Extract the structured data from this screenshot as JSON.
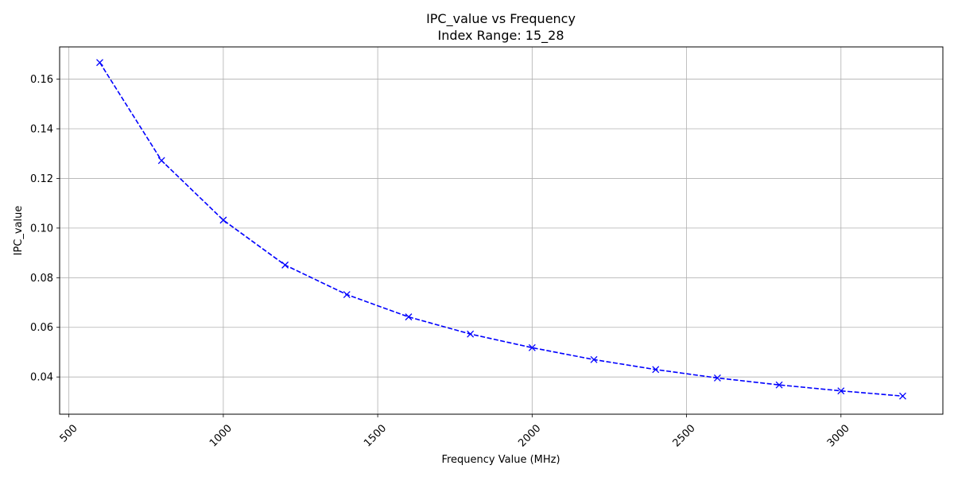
{
  "chart_data": {
    "type": "line",
    "title": "IPC_value vs Frequency",
    "subtitle": "Index Range: 15_28",
    "xlabel": "Frequency Value (MHz)",
    "ylabel": "IPC_value",
    "xlim": [
      470,
      3330
    ],
    "ylim": [
      0.025,
      0.173
    ],
    "xticks": [
      500,
      1000,
      1500,
      2000,
      2500,
      3000
    ],
    "xtick_labels": [
      "500",
      "1000",
      "1500",
      "2000",
      "2500",
      "3000"
    ],
    "yticks": [
      0.04,
      0.06,
      0.08,
      0.1,
      0.12,
      0.14,
      0.16
    ],
    "ytick_labels": [
      "0.04",
      "0.06",
      "0.08",
      "0.10",
      "0.12",
      "0.14",
      "0.16"
    ],
    "grid": true,
    "line_style": "dashed",
    "marker": "x",
    "color": "#0000ff",
    "series": [
      {
        "x": [
          600,
          800,
          1000,
          1200,
          1400,
          1600,
          1800,
          2000,
          2200,
          2400,
          2600,
          2800,
          3000,
          3200
        ],
        "values": [
          0.1667,
          0.1272,
          0.1032,
          0.0851,
          0.0732,
          0.0642,
          0.0573,
          0.0518,
          0.047,
          0.043,
          0.0396,
          0.0368,
          0.0344,
          0.0323
        ]
      }
    ]
  }
}
